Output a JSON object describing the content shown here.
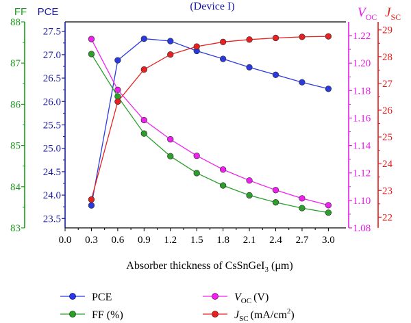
{
  "chart_data": {
    "type": "line",
    "title": "(Device I)",
    "xlabel": "Absorber thickness of CsSnGeI",
    "xlabel_sub": "3",
    "xlabel_unit": "(μm)",
    "xlim": [
      0,
      3.2
    ],
    "x_ticks": [
      "0.0",
      "0.3",
      "0.6",
      "0.9",
      "1.2",
      "1.5",
      "1.8",
      "2.1",
      "2.4",
      "2.7",
      "3.0"
    ],
    "x": [
      0.3,
      0.6,
      0.9,
      1.2,
      1.5,
      1.8,
      2.1,
      2.4,
      2.7,
      3.0
    ],
    "axes": {
      "ff": {
        "label": "FF",
        "range": [
          83,
          88
        ],
        "ticks": [
          "83",
          "84",
          "85",
          "86",
          "87",
          "88"
        ],
        "color": "#1a9a1a"
      },
      "pce": {
        "label": "PCE",
        "range": [
          23.3,
          27.7
        ],
        "ticks": [
          "23.5",
          "24.0",
          "24.5",
          "25.0",
          "25.5",
          "26.0",
          "26.5",
          "27.0",
          "27.5"
        ],
        "color": "#1a1aa0"
      },
      "voc": {
        "label": "V",
        "label_sub": "OC",
        "range": [
          1.08,
          1.23
        ],
        "ticks": [
          "1.08",
          "1.10",
          "1.12",
          "1.14",
          "1.16",
          "1.18",
          "1.20",
          "1.22"
        ],
        "color": "#e619e6"
      },
      "jsc": {
        "label": "J",
        "label_sub": "SC",
        "range": [
          21.6,
          29.3
        ],
        "ticks": [
          "22",
          "23",
          "24",
          "25",
          "26",
          "27",
          "28",
          "29"
        ],
        "color": "#e61919"
      }
    },
    "series": [
      {
        "key": "pce",
        "axis": "pce",
        "name": "PCE",
        "color": "#2a3ae0",
        "values": [
          23.78,
          26.88,
          27.34,
          27.29,
          27.08,
          26.91,
          26.73,
          26.57,
          26.41,
          26.27
        ]
      },
      {
        "key": "ff",
        "axis": "ff",
        "name": "FF (%)",
        "color": "#2aa02a",
        "values": [
          87.22,
          86.19,
          85.29,
          84.74,
          84.33,
          84.03,
          83.79,
          83.62,
          83.48,
          83.37
        ]
      },
      {
        "key": "voc",
        "axis": "voc",
        "name": "V",
        "name_sub": "OC",
        "name_unit": "(V)",
        "color": "#f020f0",
        "values": [
          1.2175,
          1.1805,
          1.1585,
          1.1445,
          1.1325,
          1.1225,
          1.1145,
          1.1075,
          1.1015,
          1.0965
        ]
      },
      {
        "key": "jsc",
        "axis": "jsc",
        "name": "J",
        "name_sub": "SC",
        "name_unit": "(mA/cm",
        "name_sup": "2",
        "name_end": ")",
        "color": "#e82020",
        "values": [
          22.66,
          26.32,
          27.52,
          28.08,
          28.38,
          28.55,
          28.64,
          28.7,
          28.74,
          28.76
        ]
      }
    ],
    "legend": "bottom",
    "grid": false
  }
}
